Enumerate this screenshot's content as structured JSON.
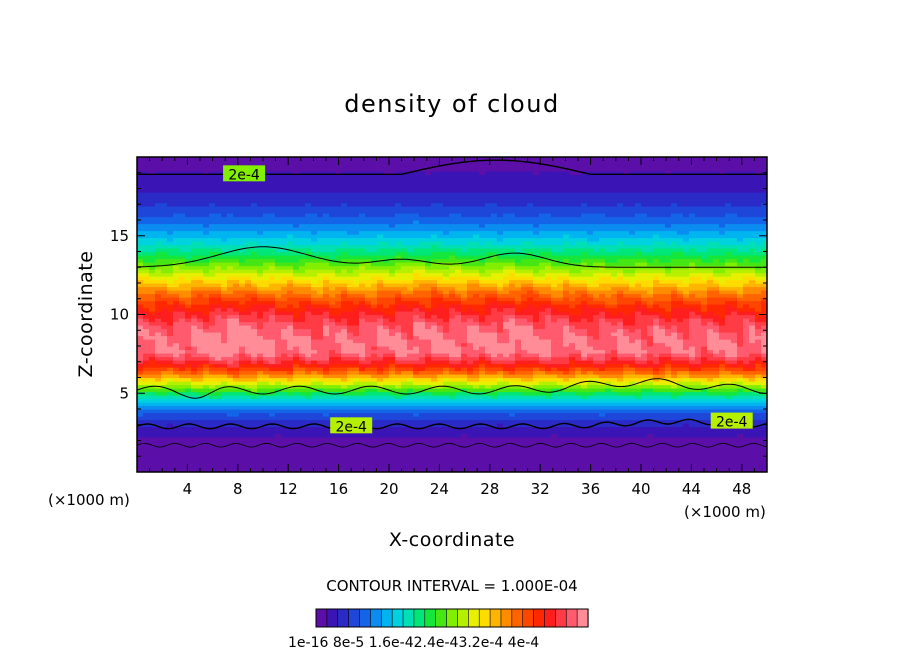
{
  "chart_data": {
    "type": "heatmap",
    "title": "density of cloud",
    "xlabel": "X-coordinate",
    "ylabel": "Z-coordinate",
    "x_unit": "(×1000 m)",
    "x_unit_right": "(×1000 m)",
    "xlim": [
      0,
      50
    ],
    "ylim": [
      0,
      20
    ],
    "x_ticks": [
      "4",
      "8",
      "12",
      "16",
      "20",
      "24",
      "28",
      "32",
      "36",
      "40",
      "44",
      "48"
    ],
    "y_ticks": [
      "5",
      "10",
      "15"
    ],
    "contour_interval_text": "CONTOUR INTERVAL = 1.000E-04",
    "contour_labels": [
      "2e-4",
      "2e-4",
      "2e-4"
    ],
    "colorbar_labels": [
      "1e-16",
      "8e-5",
      "1.6e-4",
      "2.4e-4",
      "3.2e-4",
      "4e-4"
    ],
    "colorbar_labels_text": "1e-16 8e-5 1.6e-42.4e-43.2e-4 4e-4",
    "colorbar_colors": [
      "#5c0fa8",
      "#3a14b4",
      "#2a2ac6",
      "#1e46d8",
      "#1464e8",
      "#0a8cf0",
      "#00b4f0",
      "#00d2e0",
      "#00e0b4",
      "#00e678",
      "#14e63c",
      "#46e614",
      "#82ee00",
      "#b4f000",
      "#e6f000",
      "#ffdc00",
      "#ffb400",
      "#ff8c00",
      "#ff6400",
      "#ff4600",
      "#ff2800",
      "#ff1e1e",
      "#ff3c46",
      "#ff5a6e",
      "#ff8c96"
    ]
  }
}
